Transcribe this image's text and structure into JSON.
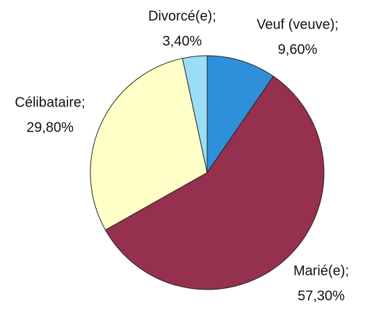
{
  "chart_data": {
    "type": "pie",
    "categories": [
      "Veuf (veuve);",
      "Marié(e);",
      "Célibataire;",
      "Divorcé(e);"
    ],
    "values": [
      9.6,
      57.3,
      29.8,
      3.4
    ],
    "value_labels": [
      "9,60%",
      "57,30%",
      "29,80%",
      "3,40%"
    ],
    "colors": [
      "#2f8fd8",
      "#96304f",
      "#ffffc8",
      "#9bdcf6"
    ]
  }
}
